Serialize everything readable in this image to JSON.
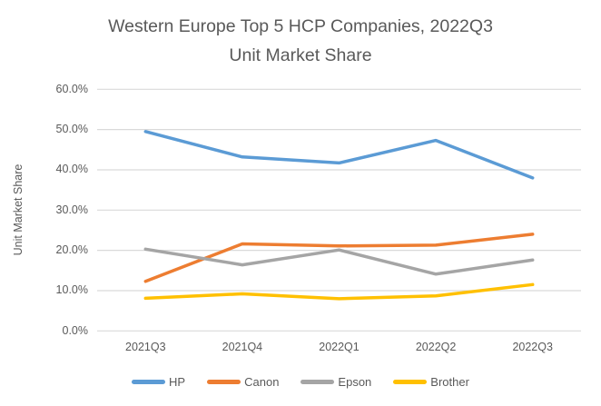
{
  "chart_data": {
    "type": "line",
    "title": "Western Europe Top 5 HCP Companies, 2022Q3",
    "subtitle": "Unit Market Share",
    "ylabel": "Unit Market Share",
    "categories": [
      "2021Q3",
      "2021Q4",
      "2022Q1",
      "2022Q2",
      "2022Q3"
    ],
    "series": [
      {
        "name": "HP",
        "color": "#5B9BD5",
        "values": [
          49.5,
          43.2,
          41.7,
          47.3,
          38.0
        ]
      },
      {
        "name": "Canon",
        "color": "#ED7D31",
        "values": [
          12.3,
          21.6,
          21.1,
          21.3,
          24.0
        ]
      },
      {
        "name": "Epson",
        "color": "#A5A5A5",
        "values": [
          20.3,
          16.4,
          20.1,
          14.1,
          17.6
        ]
      },
      {
        "name": "Brother",
        "color": "#FFC000",
        "values": [
          8.1,
          9.2,
          8.0,
          8.7,
          11.5
        ]
      }
    ],
    "ylim": [
      0,
      60
    ],
    "y_tick_step": 10,
    "y_tick_labels": [
      "0.0%",
      "10.0%",
      "20.0%",
      "30.0%",
      "40.0%",
      "50.0%",
      "60.0%"
    ],
    "grid": true,
    "legend_position": "bottom",
    "text_color": "#595959",
    "grid_color": "#D9D9D9"
  }
}
